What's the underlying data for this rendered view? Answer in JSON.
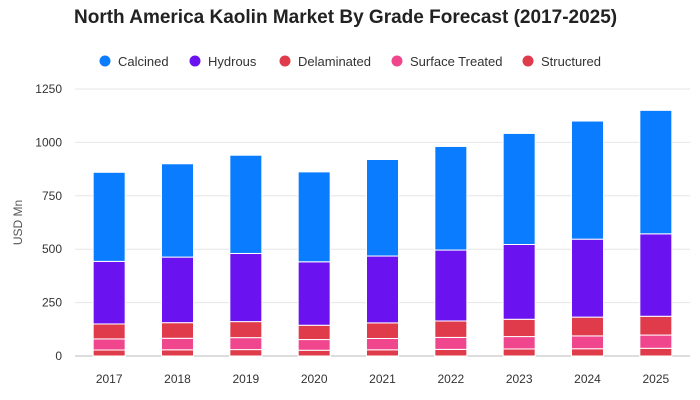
{
  "chart_data": {
    "type": "bar",
    "stacked": true,
    "title": "North America Kaolin Market By Grade Forecast (2017-2025)",
    "ylabel": "USD Mn",
    "xlabel": "",
    "ylim": [
      0,
      1250
    ],
    "yticks": [
      0,
      250,
      500,
      750,
      1000,
      1250
    ],
    "grid": true,
    "legend_position": "top",
    "categories": [
      "2017",
      "2018",
      "2019",
      "2020",
      "2021",
      "2022",
      "2023",
      "2024",
      "2025"
    ],
    "series": [
      {
        "name": "Structured",
        "color": "#e03b4b",
        "values": [
          28,
          29,
          30,
          27,
          29,
          31,
          33,
          34,
          36
        ]
      },
      {
        "name": "Surface Treated",
        "color": "#f0468e",
        "values": [
          52,
          54,
          56,
          50,
          53,
          56,
          58,
          60,
          62
        ]
      },
      {
        "name": "Delaminated",
        "color": "#e03b4b",
        "values": [
          70,
          73,
          75,
          67,
          73,
          77,
          81,
          88,
          88
        ]
      },
      {
        "name": "Hydrous",
        "color": "#6a13f0",
        "values": [
          293,
          307,
          319,
          297,
          313,
          332,
          350,
          365,
          386
        ]
      },
      {
        "name": "Calcined",
        "color": "#0a7cff",
        "values": [
          417,
          437,
          460,
          421,
          452,
          485,
          520,
          553,
          578
        ]
      }
    ],
    "legend_order": [
      "Calcined",
      "Hydrous",
      "Delaminated",
      "Surface Treated",
      "Structured"
    ]
  }
}
